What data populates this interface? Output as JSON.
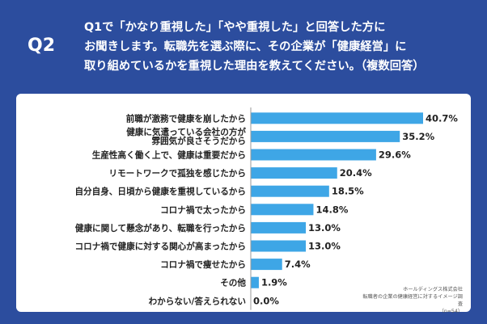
{
  "header": {
    "label": "Q2",
    "question": "Q1で「かなり重視した」「やや重視した」と回答した方に\nお聞きします。転職先を選ぶ際に、その企業が「健康経営」に\n取り組めているかを重視した理由を教えてください。（複数回答）"
  },
  "source": {
    "company": "ホールディングス株式会社",
    "survey": "転職者の企業の健康経営に対するイメージ調査",
    "n": "（n=54）"
  },
  "colors": {
    "background": "#2c4d9e",
    "bar": "#3ea6e6",
    "axis": "#9a9a9a"
  },
  "chart_data": {
    "type": "bar",
    "orientation": "horizontal",
    "categories": [
      [
        "前職が激務で健康を崩したから"
      ],
      [
        "健康に気遣っている会社の方が",
        "雰囲気が良さそうだから"
      ],
      [
        "生産性高く働く上で、健康は重要だから"
      ],
      [
        "リモートワークで孤独を感じたから"
      ],
      [
        "自分自身、日頃から健康を重視しているから"
      ],
      [
        "コロナ禍で太ったから"
      ],
      [
        "健康に関して懸念があり、転職を行ったから"
      ],
      [
        "コロナ禍で健康に対する関心が高まったから"
      ],
      [
        "コロナ禍で痩せたから"
      ],
      [
        "その他"
      ],
      [
        "わからない/答えられない"
      ]
    ],
    "values": [
      40.7,
      35.2,
      29.6,
      20.4,
      18.5,
      14.8,
      13.0,
      13.0,
      7.4,
      1.9,
      0.0
    ],
    "value_labels": [
      "40.7%",
      "35.2%",
      "29.6%",
      "20.4%",
      "18.5%",
      "14.8%",
      "13.0%",
      "13.0%",
      "7.4%",
      "1.9%",
      "0.0%"
    ],
    "xlim": [
      0,
      50
    ]
  }
}
